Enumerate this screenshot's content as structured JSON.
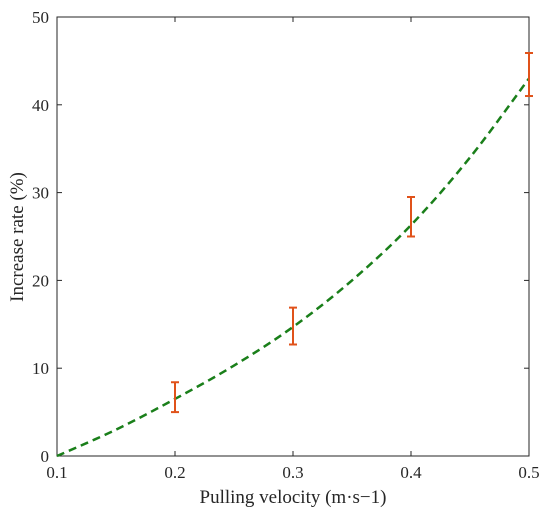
{
  "chart_data": {
    "type": "line",
    "xlabel": "Pulling velocity (m·s−1)",
    "ylabel": "Increase rate (%)",
    "xlim": [
      0.1,
      0.5
    ],
    "ylim": [
      0,
      50
    ],
    "x_ticks": [
      0.1,
      0.2,
      0.3,
      0.4,
      0.5
    ],
    "x_tick_labels": [
      "0.1",
      "0.2",
      "0.3",
      "0.4",
      "0.5"
    ],
    "y_ticks": [
      0,
      10,
      20,
      30,
      40,
      50
    ],
    "y_tick_labels": [
      "0",
      "10",
      "20",
      "30",
      "40",
      "50"
    ],
    "grid": false,
    "legend": "none",
    "series": [
      {
        "kind": "fit-curve",
        "style": "dashed",
        "color": "#1a7f1a",
        "x": [
          0.1,
          0.15,
          0.2,
          0.25,
          0.3,
          0.35,
          0.4,
          0.45,
          0.5
        ],
        "y": [
          0,
          3.0,
          6.5,
          10.3,
          14.7,
          20.0,
          26.3,
          34.0,
          43.0
        ]
      },
      {
        "kind": "error-bars",
        "color": "#e0521a",
        "x": [
          0.2,
          0.3,
          0.4,
          0.5
        ],
        "y_low": [
          5.0,
          12.7,
          25.0,
          41.0
        ],
        "y_high": [
          8.4,
          16.9,
          29.5,
          45.9
        ]
      }
    ]
  }
}
